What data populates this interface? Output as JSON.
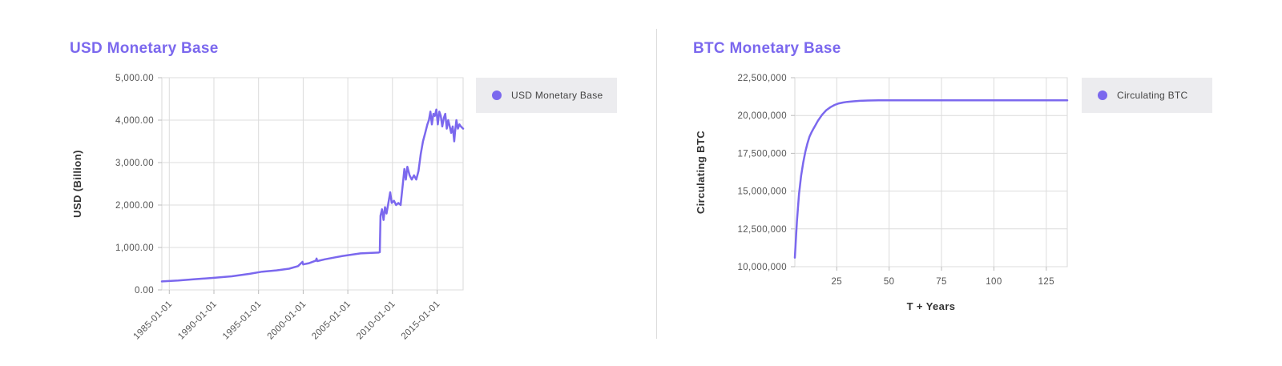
{
  "accent_color": "#7b68ee",
  "charts": {
    "usd": {
      "title": "USD Monetary Base",
      "legend_label": "USD Monetary Base"
    },
    "btc": {
      "title": "BTC Monetary Base",
      "legend_label": "Circulating BTC"
    }
  },
  "chart_data": [
    {
      "type": "line",
      "title": "USD Monetary Base",
      "xlabel": "",
      "ylabel": "USD (Billion)",
      "x_ticks": [
        "1985-01-01",
        "1990-01-01",
        "1995-01-01",
        "2000-01-01",
        "2005-01-01",
        "2010-01-01",
        "2015-01-01"
      ],
      "y_ticks": [
        "0.00",
        "1,000.00",
        "2,000.00",
        "3,000.00",
        "4,000.00",
        "5,000.00"
      ],
      "xlim": [
        "1984-03-01",
        "2017-12-01"
      ],
      "ylim": [
        0,
        5000
      ],
      "grid": true,
      "legend_position": "right",
      "series": [
        {
          "name": "USD Monetary Base",
          "color": "#7b68ee",
          "x": [
            "1984-03-01",
            "1986-01-01",
            "1988-01-01",
            "1990-01-01",
            "1992-01-01",
            "1994-01-01",
            "1995-06-01",
            "1997-01-01",
            "1998-06-01",
            "1999-06-01",
            "1999-12-01",
            "2000-01-01",
            "2000-03-01",
            "2000-09-01",
            "2001-06-01",
            "2001-07-01",
            "2001-08-01",
            "2002-06-01",
            "2003-06-01",
            "2004-06-01",
            "2005-06-01",
            "2006-06-01",
            "2007-06-01",
            "2008-06-01",
            "2008-08-01",
            "2008-09-01",
            "2008-11-01",
            "2009-01-01",
            "2009-03-01",
            "2009-05-01",
            "2009-08-01",
            "2009-10-01",
            "2009-12-01",
            "2010-03-01",
            "2010-06-01",
            "2010-09-01",
            "2010-12-01",
            "2011-03-01",
            "2011-05-01",
            "2011-07-01",
            "2011-09-01",
            "2011-12-01",
            "2012-03-01",
            "2012-06-01",
            "2012-09-01",
            "2012-12-01",
            "2013-03-01",
            "2013-06-01",
            "2013-09-01",
            "2013-12-01",
            "2014-02-01",
            "2014-04-01",
            "2014-06-01",
            "2014-08-01",
            "2014-10-01",
            "2014-12-01",
            "2015-02-01",
            "2015-04-01",
            "2015-06-01",
            "2015-08-01",
            "2015-10-01",
            "2015-12-01",
            "2016-02-01",
            "2016-04-01",
            "2016-06-01",
            "2016-08-01",
            "2016-10-01",
            "2016-12-01",
            "2017-01-01",
            "2017-03-01",
            "2017-05-01",
            "2017-07-01",
            "2017-09-01",
            "2017-12-01"
          ],
          "y": [
            200,
            220,
            255,
            285,
            320,
            380,
            430,
            460,
            500,
            560,
            660,
            600,
            610,
            630,
            690,
            740,
            680,
            720,
            760,
            800,
            830,
            860,
            870,
            880,
            890,
            1750,
            1900,
            1650,
            1950,
            1800,
            2100,
            2300,
            2050,
            2100,
            2000,
            2050,
            2000,
            2500,
            2850,
            2600,
            2900,
            2700,
            2600,
            2700,
            2600,
            2800,
            3200,
            3500,
            3700,
            3900,
            4000,
            4200,
            3900,
            4150,
            4100,
            4250,
            3900,
            4200,
            4100,
            3850,
            4050,
            4150,
            3800,
            4000,
            3850,
            3700,
            3850,
            3500,
            3700,
            4000,
            3800,
            3900,
            3850,
            3800
          ]
        }
      ]
    },
    {
      "type": "line",
      "title": "BTC Monetary Base",
      "xlabel": "T + Years",
      "ylabel": "Circulating BTC",
      "x_ticks": [
        "25",
        "50",
        "75",
        "100",
        "125"
      ],
      "y_ticks": [
        "10,000,000",
        "12,500,000",
        "15,000,000",
        "17,500,000",
        "20,000,000",
        "22,500,000"
      ],
      "xlim": [
        5,
        135
      ],
      "ylim": [
        10000000,
        22500000
      ],
      "grid": true,
      "legend_position": "right",
      "series": [
        {
          "name": "Circulating BTC",
          "color": "#7b68ee",
          "x": [
            5,
            6,
            7,
            8,
            9,
            10,
            11,
            12,
            13,
            14,
            15,
            16,
            18,
            20,
            22,
            24,
            26,
            28,
            30,
            33,
            36,
            40,
            45,
            50,
            60,
            75,
            100,
            125,
            135
          ],
          "y": [
            10600000,
            13000000,
            14800000,
            16000000,
            16900000,
            17600000,
            18150000,
            18600000,
            18900000,
            19150000,
            19400000,
            19650000,
            20050000,
            20350000,
            20550000,
            20700000,
            20800000,
            20860000,
            20900000,
            20940000,
            20970000,
            20990000,
            21000000,
            21000000,
            21000000,
            21000000,
            21000000,
            21000000,
            21000000
          ]
        }
      ]
    }
  ]
}
